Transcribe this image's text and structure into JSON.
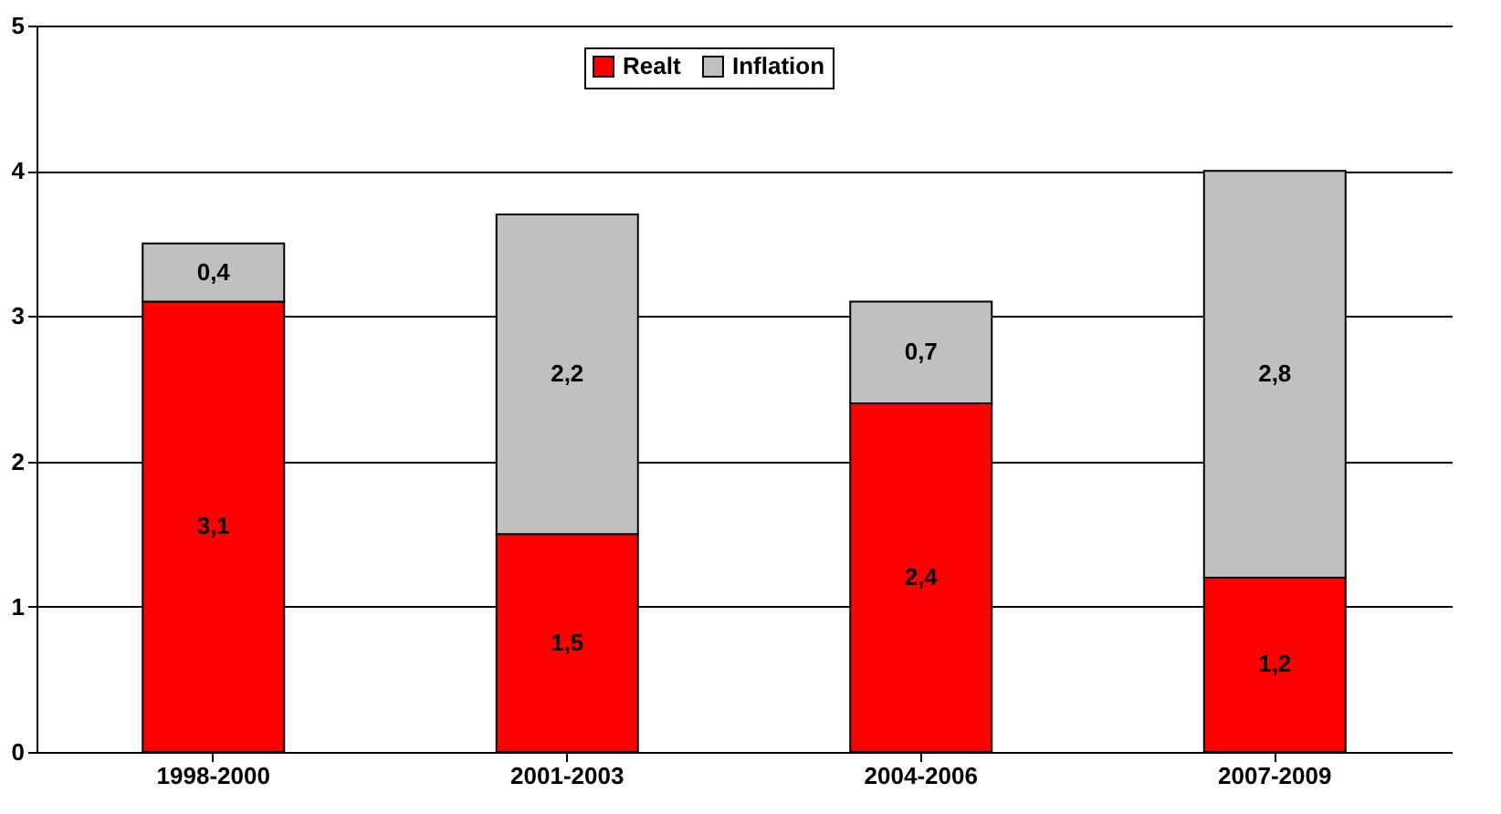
{
  "chart_data": {
    "type": "bar",
    "stacked": true,
    "categories": [
      "1998-2000",
      "2001-2003",
      "2004-2006",
      "2007-2009"
    ],
    "series": [
      {
        "name": "Realt",
        "color": "#ff0000",
        "values": [
          3.1,
          1.5,
          2.4,
          1.2
        ],
        "value_labels": [
          "3,1",
          "1,5",
          "2,4",
          "1,2"
        ]
      },
      {
        "name": "Inflation",
        "color": "#c0c0c0",
        "values": [
          0.4,
          2.2,
          0.7,
          2.8
        ],
        "value_labels": [
          "0,4",
          "2,2",
          "0,7",
          "2,8"
        ]
      }
    ],
    "ylim": [
      0,
      5
    ],
    "yticks": [
      0,
      1,
      2,
      3,
      4,
      5
    ],
    "grid": "y",
    "legend": "top"
  }
}
